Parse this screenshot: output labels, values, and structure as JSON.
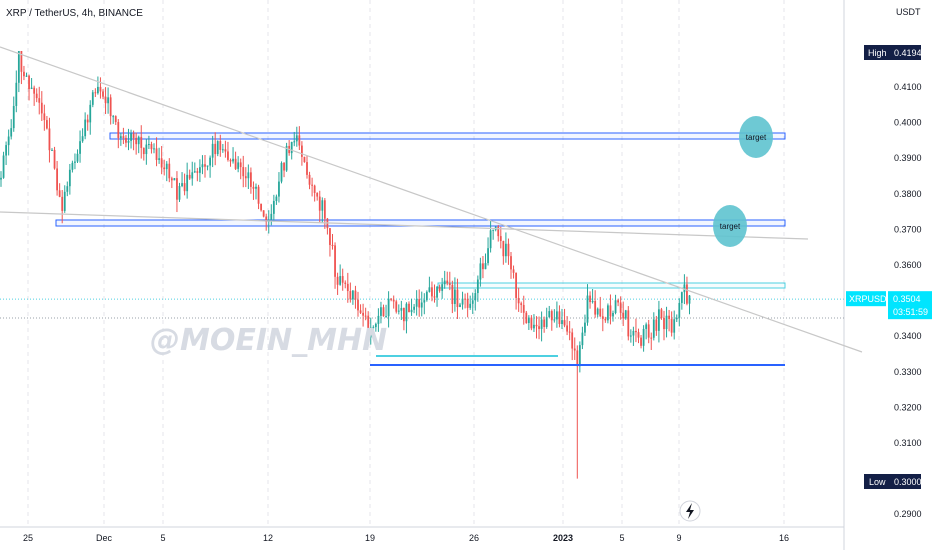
{
  "chart_data": {
    "type": "candlestick",
    "title": "XRP / TetherUS, 4h, BINANCE",
    "symbol": "XRPUSDT",
    "currency_label": "USDT",
    "watermark": "@MOEIN_MHN",
    "y_ticks": [
      "0.4100",
      "0.4000",
      "0.3900",
      "0.3800",
      "0.3700",
      "0.3600",
      "0.3400",
      "0.3300",
      "0.3200",
      "0.3100",
      "0.2900"
    ],
    "x_ticks": [
      "25",
      "Dec",
      "5",
      "12",
      "19",
      "26",
      "2023",
      "5",
      "9",
      "16"
    ],
    "high_label": "High",
    "high_value": "0.4194",
    "low_label": "Low",
    "low_value": "0.3000",
    "last_price": "0.3504",
    "countdown": "03:51:59",
    "targets": [
      "target",
      "target"
    ],
    "colors": {
      "up": "#26a69a",
      "down": "#ef5350",
      "zone": "#2962ff",
      "support_light": "#4dd0e1",
      "target_circle": "#5ec3cf",
      "trendline": "#c8c8c8",
      "badge": "#131f46",
      "price_badge": "#00e5ff"
    },
    "icons": [
      "lightning-icon"
    ],
    "grid": true
  }
}
